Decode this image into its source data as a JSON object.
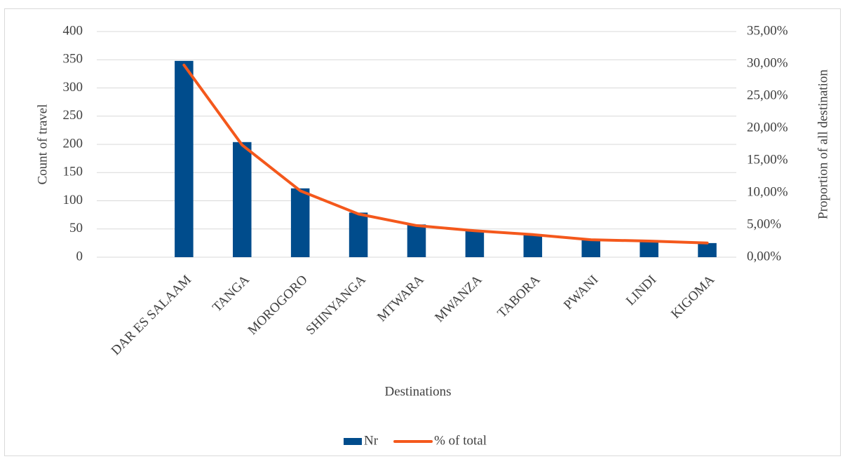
{
  "chart_data": {
    "type": "bar",
    "x_label": "Destinations",
    "y_label": "Count of travel",
    "y2_label": "Proportion of all destination",
    "categories": [
      null,
      "DAR ES SALAAM",
      "TANGA",
      "MOROGORO",
      "SHINYANGA",
      "MTWARA",
      "MWANZA",
      "TABORA",
      "PWANI",
      "LINDI",
      "KIGOMA"
    ],
    "series": [
      {
        "name": "Nr",
        "color": "#004c8c",
        "values": [
          null,
          348,
          204,
          122,
          79,
          58,
          48,
          41,
          32,
          29,
          25
        ]
      },
      {
        "name": "% of total",
        "color": "#f4581c",
        "type": "line",
        "axis": "y2",
        "values": [
          null,
          29.8,
          17.4,
          10.3,
          6.7,
          4.9,
          4.1,
          3.5,
          2.7,
          2.5,
          2.2
        ]
      }
    ],
    "ylim": [
      0,
      400
    ],
    "yticks": [
      0,
      50,
      100,
      150,
      200,
      250,
      300,
      350,
      400
    ],
    "y2lim": [
      0,
      35
    ],
    "y2ticks": [
      {
        "value": 0,
        "label": "0,00%"
      },
      {
        "value": 5,
        "label": "5,00%"
      },
      {
        "value": 10,
        "label": "10,00%"
      },
      {
        "value": 15,
        "label": "15,00%"
      },
      {
        "value": 20,
        "label": "20,00%"
      },
      {
        "value": 25,
        "label": "25,00%"
      },
      {
        "value": 30,
        "label": "30,00%"
      },
      {
        "value": 35,
        "label": "35,00%"
      }
    ],
    "grid": true,
    "legend": "bottom"
  }
}
